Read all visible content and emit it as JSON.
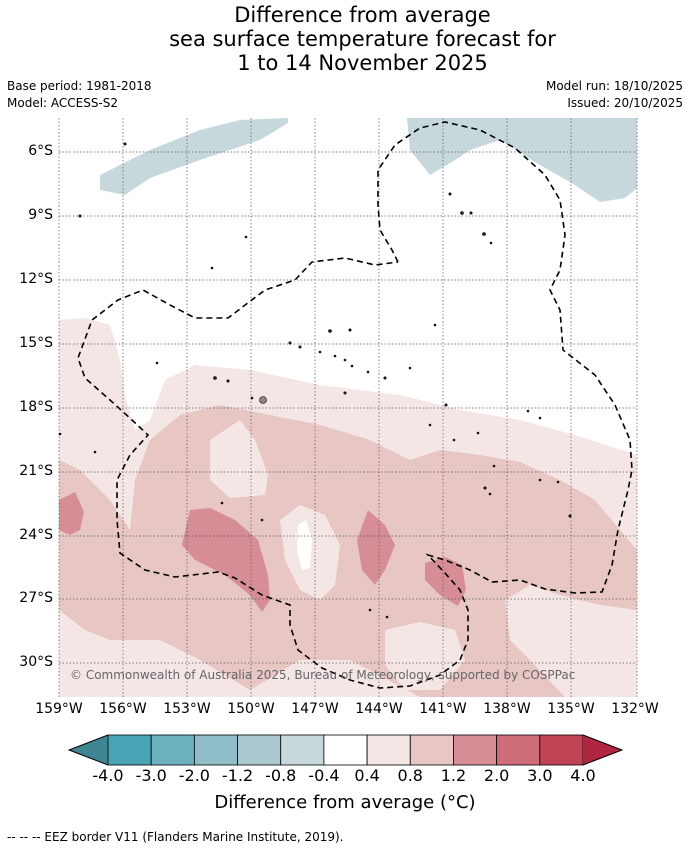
{
  "title": {
    "line1": "Difference from average",
    "line2": "sea surface temperature forecast for",
    "line3": "1 to 14 November 2025"
  },
  "meta": {
    "base_period": "Base period: 1981-2018",
    "model": "Model: ACCESS-S2",
    "model_run": "Model run: 18/10/2025",
    "issued": "Issued: 20/10/2025"
  },
  "map": {
    "lat_labels": [
      "6°S",
      "9°S",
      "12°S",
      "15°S",
      "18°S",
      "21°S",
      "24°S",
      "27°S",
      "30°S"
    ],
    "lon_labels": [
      "159°W",
      "156°W",
      "153°W",
      "150°W",
      "147°W",
      "144°W",
      "141°W",
      "138°W",
      "135°W",
      "132°W"
    ],
    "copyright": "© Commonwealth of Australia 2025, Bureau of Meteorology, supported by COSPPac"
  },
  "colorbar": {
    "ticks": [
      "-4.0",
      "-3.0",
      "-2.0",
      "-1.2",
      "-0.8",
      "-0.4",
      "0.4",
      "0.8",
      "1.2",
      "2.0",
      "3.0",
      "4.0"
    ],
    "colors": [
      "#48a4b4",
      "#6db0bf",
      "#8fbdc8",
      "#abc8cf",
      "#c7d8dc",
      "#ffffff",
      "#f5e6e6",
      "#e7c6c3",
      "#d78d95",
      "#ce6c78",
      "#c04454"
    ],
    "low_color": "#3f8592",
    "high_color": "#b02640",
    "label": "Difference from average (°C)"
  },
  "legend": {
    "eez": "--  --  -- EEZ border V11 (Flanders Marine Institute, 2019)."
  }
}
